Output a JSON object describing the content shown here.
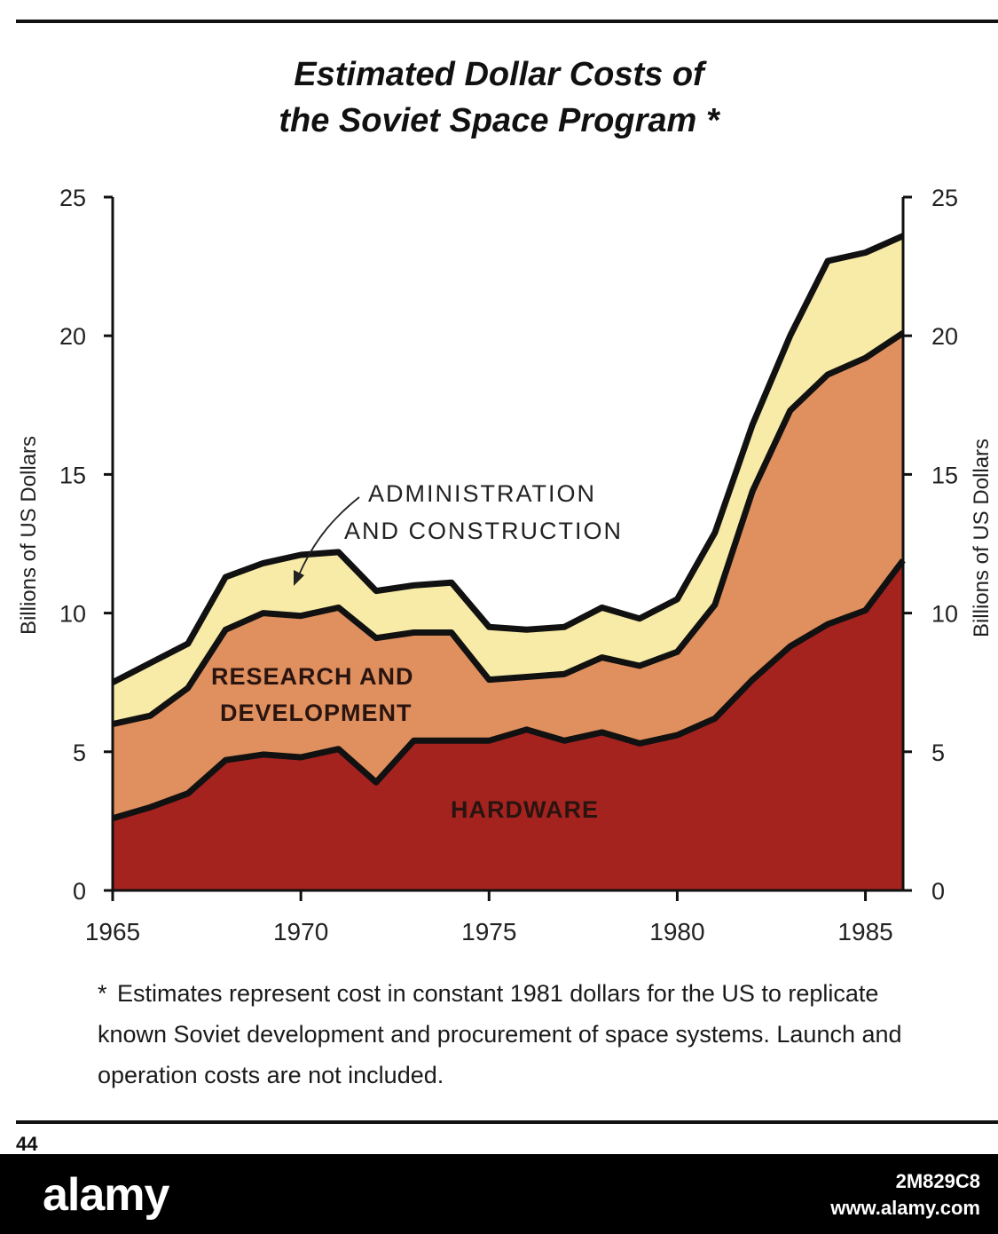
{
  "title": {
    "line1": "Estimated Dollar Costs of",
    "line2": "the Soviet Space Program",
    "marker": "*"
  },
  "chart_data": {
    "type": "area",
    "stacked": true,
    "x": [
      1965,
      1966,
      1967,
      1968,
      1969,
      1970,
      1971,
      1972,
      1973,
      1974,
      1975,
      1976,
      1977,
      1978,
      1979,
      1980,
      1981,
      1982,
      1983,
      1984,
      1985,
      1986
    ],
    "series": [
      {
        "name": "HARDWARE",
        "color": "#a4231f",
        "values": [
          2.6,
          3.0,
          3.5,
          4.7,
          4.9,
          4.8,
          5.1,
          3.9,
          5.4,
          5.4,
          5.4,
          5.8,
          5.4,
          5.7,
          5.3,
          5.6,
          6.2,
          7.6,
          8.8,
          9.6,
          10.1,
          11.9
        ]
      },
      {
        "name": "RESEARCH AND DEVELOPMENT",
        "color": "#e0905e",
        "values": [
          3.4,
          3.3,
          3.8,
          4.7,
          5.1,
          5.1,
          5.1,
          5.2,
          3.9,
          3.9,
          2.2,
          1.9,
          2.4,
          2.7,
          2.8,
          3.0,
          4.1,
          6.8,
          8.5,
          9.0,
          9.1,
          8.2
        ]
      },
      {
        "name": "ADMINISTRATION AND CONSTRUCTION",
        "color": "#f8eba7",
        "values": [
          1.5,
          1.9,
          1.6,
          1.9,
          1.8,
          2.2,
          2.0,
          1.7,
          1.7,
          1.8,
          1.9,
          1.7,
          1.7,
          1.8,
          1.7,
          1.9,
          2.6,
          2.4,
          2.7,
          4.1,
          3.8,
          3.5
        ]
      }
    ],
    "xticks": [
      1965,
      1970,
      1975,
      1980,
      1985
    ],
    "xlim": [
      1965,
      1986
    ],
    "yticks": [
      0,
      5,
      10,
      15,
      20,
      25
    ],
    "ylim": [
      0,
      25
    ],
    "ylabel": "Billions of US Dollars",
    "ylabel_right": "Billions of US Dollars",
    "grid": false,
    "annotations": {
      "hardware": "HARDWARE",
      "rd_line1": "RESEARCH AND",
      "rd_line2": "DEVELOPMENT",
      "admin_line1": "ADMINISTRATION",
      "admin_line2": "AND CONSTRUCTION"
    }
  },
  "footnote": {
    "marker": "*",
    "text": "Estimates represent cost in constant 1981 dollars for the US to replicate known Soviet development and procurement of space systems. Launch and operation costs are not included."
  },
  "page_number": "44",
  "watermark": {
    "logo": "alamy",
    "image_id": "2M829C8",
    "url": "www.alamy.com"
  }
}
